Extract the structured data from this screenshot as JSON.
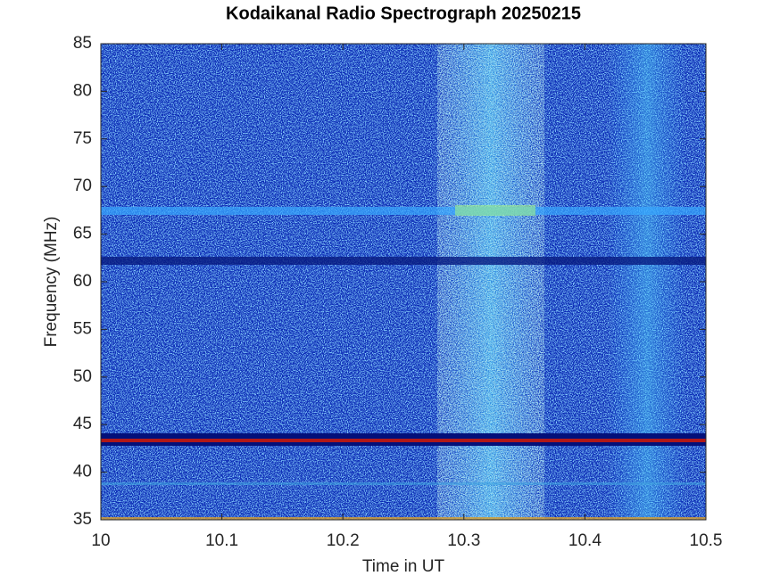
{
  "chart_data": {
    "type": "spectrogram",
    "title": "Kodaikanal Radio Spectrograph  20250215",
    "x_label": "Time in UT",
    "y_label": "Frequency (MHz)",
    "xlim": [
      10,
      10.5
    ],
    "xticks": [
      10,
      10.1,
      10.2,
      10.3,
      10.4,
      10.5
    ],
    "ylim": [
      35,
      85
    ],
    "yticks": [
      35,
      40,
      45,
      50,
      55,
      60,
      65,
      70,
      75,
      80,
      85
    ]
  }
}
